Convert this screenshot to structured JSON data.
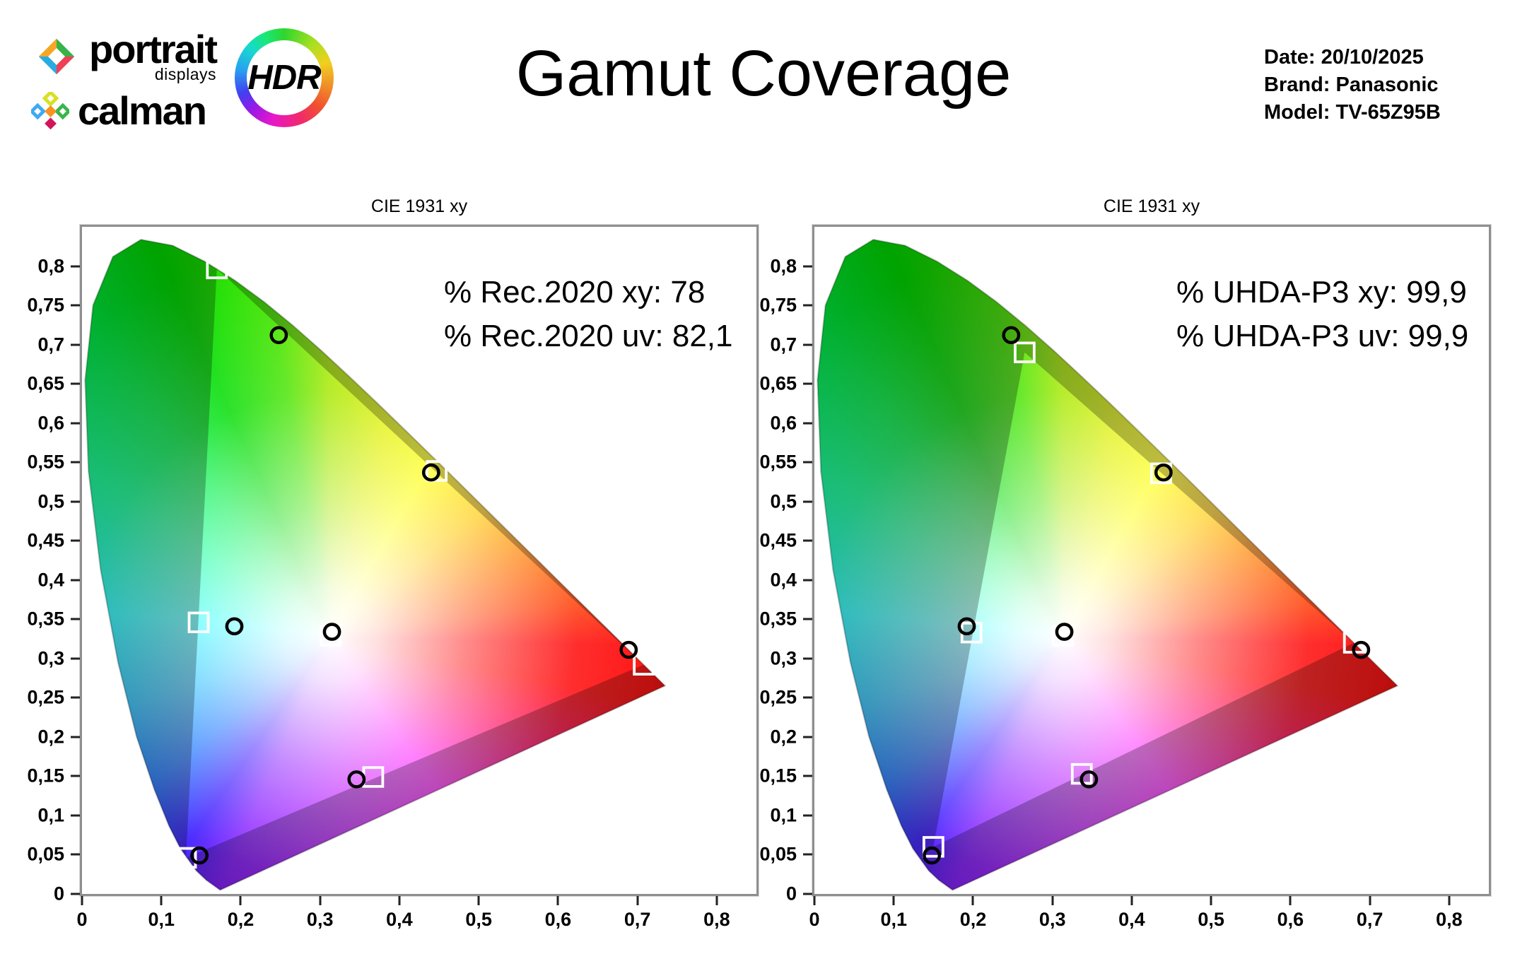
{
  "header": {
    "logo": {
      "portrait": "portrait",
      "displays": "displays",
      "calman": "calman",
      "hdr": "HDR"
    },
    "title": "Gamut Coverage",
    "meta": {
      "date": "Date: 20/10/2025",
      "brand": "Brand: Panasonic",
      "model": "Model: TV-65Z95B"
    }
  },
  "palette": {
    "background": "#ffffff",
    "plot_border": "#8f8f8f",
    "target_marker": "#ffffff",
    "measured_marker": "#000000",
    "outside_gamut_dim": "rgba(0,0,0,0.26)"
  },
  "chart_data": [
    {
      "type": "scatter",
      "title": "CIE 1931 xy",
      "annotation_lines": [
        "% Rec.2020 xy: 78",
        "% Rec.2020 uv: 82,1"
      ],
      "coverage": {
        "standard": "Rec.2020",
        "xy_percent": "78",
        "uv_percent": "82,1"
      },
      "xlim": [
        0,
        0.85
      ],
      "ylim": [
        0,
        0.85
      ],
      "grid": false,
      "x_tick_values": [
        0,
        0.1,
        0.2,
        0.3,
        0.4,
        0.5,
        0.6,
        0.7,
        0.8
      ],
      "x_tick_labels": [
        "0",
        "0,1",
        "0,2",
        "0,3",
        "0,4",
        "0,5",
        "0,6",
        "0,7",
        "0,8"
      ],
      "y_tick_values": [
        0,
        0.05,
        0.1,
        0.15,
        0.2,
        0.25,
        0.3,
        0.35,
        0.4,
        0.45,
        0.5,
        0.55,
        0.6,
        0.65,
        0.7,
        0.75,
        0.8
      ],
      "y_tick_labels": [
        "0",
        "0,05",
        "0,1",
        "0,15",
        "0,2",
        "0,25",
        "0,3",
        "0,35",
        "0,4",
        "0,45",
        "0,5",
        "0,55",
        "0,6",
        "0,65",
        "0,7",
        "0,75",
        "0,8"
      ],
      "reference_gamut": {
        "name": "Rec.2020",
        "triangle": {
          "red": [
            0.708,
            0.292
          ],
          "green": [
            0.17,
            0.797
          ],
          "blue": [
            0.131,
            0.046
          ]
        }
      },
      "targets_squares": {
        "red": [
          0.708,
          0.292
        ],
        "green": [
          0.17,
          0.797
        ],
        "blue": [
          0.131,
          0.046
        ],
        "cyan": [
          0.147,
          0.346
        ],
        "magenta": [
          0.367,
          0.149
        ],
        "yellow": [
          0.447,
          0.539
        ],
        "white": [
          0.313,
          0.329
        ]
      },
      "measured_circles": {
        "red": [
          0.689,
          0.311
        ],
        "green": [
          0.248,
          0.712
        ],
        "blue": [
          0.148,
          0.049
        ],
        "cyan": [
          0.192,
          0.341
        ],
        "magenta": [
          0.346,
          0.146
        ],
        "yellow": [
          0.44,
          0.537
        ],
        "white": [
          0.315,
          0.334
        ]
      }
    },
    {
      "type": "scatter",
      "title": "CIE 1931 xy",
      "annotation_lines": [
        "% UHDA-P3 xy: 99,9",
        "% UHDA-P3 uv: 99,9"
      ],
      "coverage": {
        "standard": "UHDA-P3",
        "xy_percent": "99,9",
        "uv_percent": "99,9"
      },
      "xlim": [
        0,
        0.85
      ],
      "ylim": [
        0,
        0.85
      ],
      "grid": false,
      "x_tick_values": [
        0,
        0.1,
        0.2,
        0.3,
        0.4,
        0.5,
        0.6,
        0.7,
        0.8
      ],
      "x_tick_labels": [
        "0",
        "0,1",
        "0,2",
        "0,3",
        "0,4",
        "0,5",
        "0,6",
        "0,7",
        "0,8"
      ],
      "y_tick_values": [
        0,
        0.05,
        0.1,
        0.15,
        0.2,
        0.25,
        0.3,
        0.35,
        0.4,
        0.45,
        0.5,
        0.55,
        0.6,
        0.65,
        0.7,
        0.75,
        0.8
      ],
      "y_tick_labels": [
        "0",
        "0,05",
        "0,1",
        "0,15",
        "0,2",
        "0,25",
        "0,3",
        "0,35",
        "0,4",
        "0,45",
        "0,5",
        "0,55",
        "0,6",
        "0,65",
        "0,7",
        "0,75",
        "0,8"
      ],
      "reference_gamut": {
        "name": "UHDA-P3",
        "triangle": {
          "red": [
            0.68,
            0.32
          ],
          "green": [
            0.265,
            0.69
          ],
          "blue": [
            0.15,
            0.06
          ]
        }
      },
      "targets_squares": {
        "red": [
          0.68,
          0.32
        ],
        "green": [
          0.265,
          0.69
        ],
        "blue": [
          0.15,
          0.06
        ],
        "cyan": [
          0.198,
          0.333
        ],
        "magenta": [
          0.337,
          0.153
        ],
        "yellow": [
          0.437,
          0.536
        ],
        "white": [
          0.313,
          0.329
        ]
      },
      "measured_circles": {
        "red": [
          0.689,
          0.311
        ],
        "green": [
          0.248,
          0.712
        ],
        "blue": [
          0.148,
          0.049
        ],
        "cyan": [
          0.192,
          0.341
        ],
        "magenta": [
          0.346,
          0.146
        ],
        "yellow": [
          0.44,
          0.537
        ],
        "white": [
          0.315,
          0.334
        ]
      }
    }
  ]
}
